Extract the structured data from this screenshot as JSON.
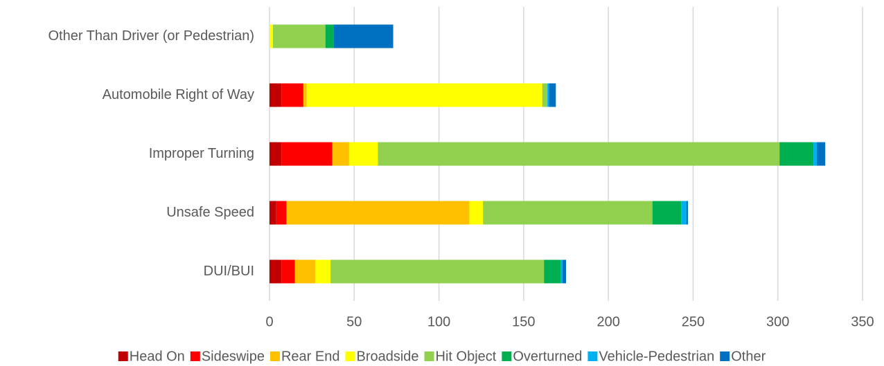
{
  "chart_data": {
    "type": "stacked-barh",
    "categories": [
      "Other Than Driver (or Pedestrian)",
      "Automobile Right of Way",
      "Improper Turning",
      "Unsafe Speed",
      "DUI/BUI"
    ],
    "series": [
      {
        "name": "Head On",
        "color": "#c00000",
        "values": [
          0,
          7,
          7,
          4,
          7
        ]
      },
      {
        "name": "Sideswipe",
        "color": "#ff0000",
        "values": [
          0,
          13,
          30,
          6,
          8
        ]
      },
      {
        "name": "Rear End",
        "color": "#ffc000",
        "values": [
          0,
          2,
          10,
          108,
          12
        ]
      },
      {
        "name": "Broadside",
        "color": "#ffff00",
        "values": [
          2,
          139,
          17,
          8,
          9
        ]
      },
      {
        "name": "Hit Object",
        "color": "#92d050",
        "values": [
          31,
          3,
          237,
          100,
          126
        ]
      },
      {
        "name": "Overturned",
        "color": "#00b050",
        "values": [
          5,
          0,
          20,
          17,
          10
        ]
      },
      {
        "name": "Vehicle-Pedestrian",
        "color": "#00b0f0",
        "values": [
          0,
          1,
          2,
          3,
          1
        ]
      },
      {
        "name": "Other",
        "color": "#0070c0",
        "values": [
          35,
          4,
          5,
          1,
          2
        ]
      }
    ],
    "xlim": [
      0,
      350
    ],
    "xticks": [
      0,
      50,
      100,
      150,
      200,
      250,
      300,
      350
    ],
    "grid": true,
    "legend": "bottom"
  }
}
